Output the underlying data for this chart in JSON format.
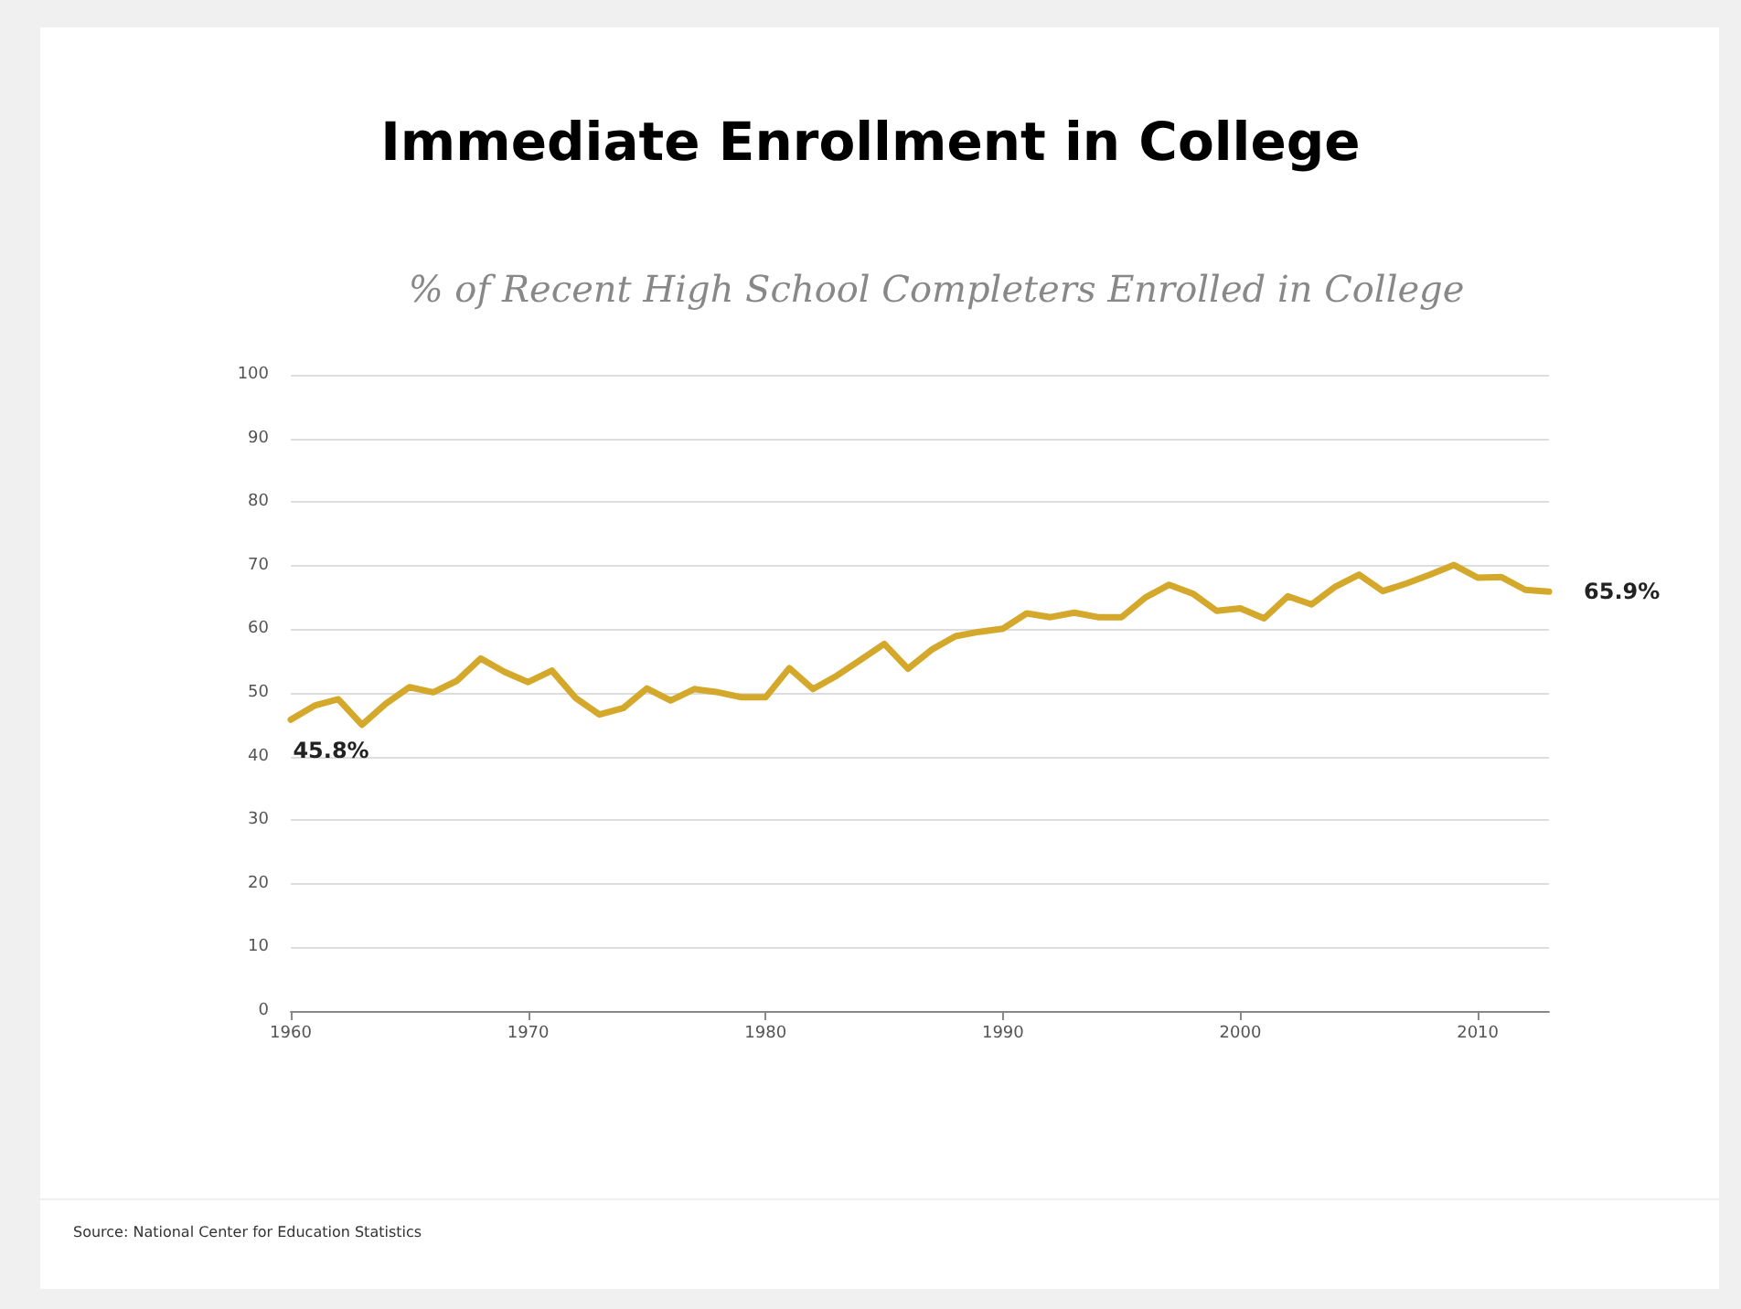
{
  "chart_data": {
    "type": "line",
    "title": "Immediate Enrollment in College",
    "subtitle": "% of Recent High School Completers Enrolled in College",
    "x": [
      1960,
      1961,
      1962,
      1963,
      1964,
      1965,
      1966,
      1967,
      1968,
      1969,
      1970,
      1971,
      1972,
      1973,
      1974,
      1975,
      1976,
      1977,
      1978,
      1979,
      1980,
      1981,
      1982,
      1983,
      1984,
      1985,
      1986,
      1987,
      1988,
      1989,
      1990,
      1991,
      1992,
      1993,
      1994,
      1995,
      1996,
      1997,
      1998,
      1999,
      2000,
      2001,
      2002,
      2003,
      2004,
      2005,
      2006,
      2007,
      2008,
      2009,
      2010,
      2011,
      2012,
      2013
    ],
    "series": [
      {
        "color": "#d4a82a",
        "values": [
          45.8,
          48.0,
          49.0,
          45.0,
          48.3,
          50.9,
          50.1,
          51.9,
          55.4,
          53.3,
          51.7,
          53.5,
          49.2,
          46.6,
          47.6,
          50.7,
          48.8,
          50.6,
          50.1,
          49.3,
          49.3,
          53.9,
          50.6,
          52.7,
          55.2,
          57.7,
          53.8,
          56.8,
          58.9,
          59.6,
          60.1,
          62.5,
          61.9,
          62.6,
          61.9,
          61.9,
          65.0,
          67.0,
          65.6,
          62.9,
          63.3,
          61.7,
          65.2,
          63.9,
          66.7,
          68.6,
          66.0,
          67.2,
          68.6,
          70.1,
          68.1,
          68.2,
          66.2,
          65.9
        ]
      }
    ],
    "xlim": [
      1960,
      2013
    ],
    "xticks": [
      1960,
      1970,
      1980,
      1990,
      2000,
      2010
    ],
    "ylim": [
      0,
      100
    ],
    "yticks": [
      0,
      10,
      20,
      30,
      40,
      50,
      60,
      70,
      80,
      90,
      100
    ],
    "grid": "y",
    "marker": "none",
    "line_style": "solid",
    "annotations": [
      {
        "text": "45.8%",
        "x": 1960,
        "y": 45.8
      },
      {
        "text": "65.9%",
        "x": 2013,
        "y": 65.9
      },
      "Source: National Center for Education Statistics"
    ]
  }
}
